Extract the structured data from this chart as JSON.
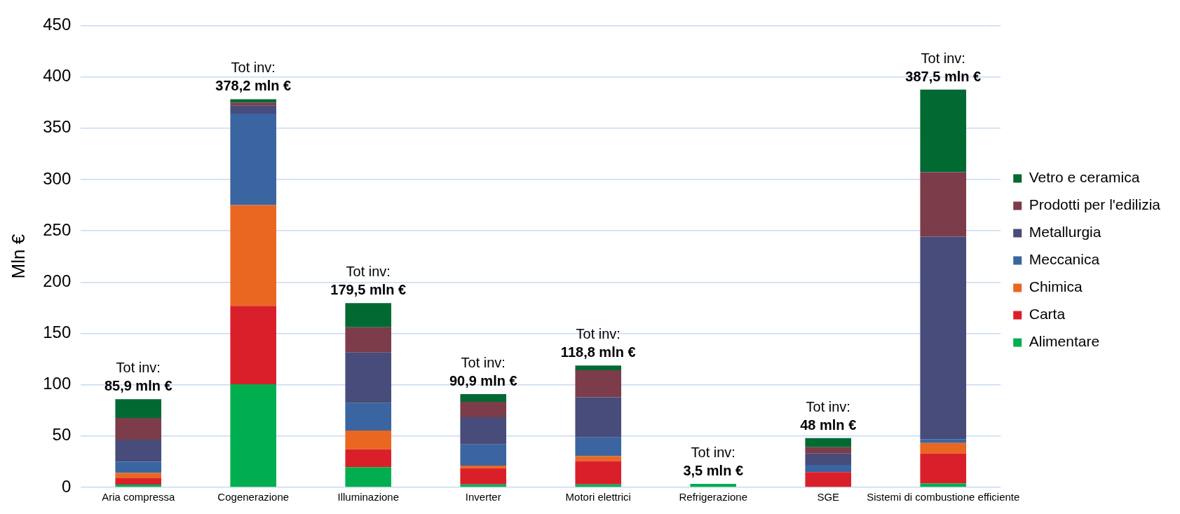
{
  "chart_data": {
    "type": "bar",
    "stacked": true,
    "ylabel": "Mln €",
    "ylim": [
      0,
      450
    ],
    "yticks": [
      0,
      50,
      100,
      150,
      200,
      250,
      300,
      350,
      400,
      450
    ],
    "grid": "y",
    "legend": "right",
    "categories": [
      "Aria compressa",
      "Cogenerazione",
      "Illuminazione",
      "Inverter",
      "Motori elettrici",
      "Refrigerazione",
      "SGE",
      "Sistemi di combustione efficiente"
    ],
    "series": [
      {
        "name": "Alimentare",
        "color": "#00ae4f",
        "values": [
          2.7,
          100.4,
          19.7,
          2.9,
          2.9,
          3.5,
          0,
          3.8
        ]
      },
      {
        "name": "Carta",
        "color": "#d9202a",
        "values": [
          6.2,
          76.4,
          17.3,
          15.8,
          22.7,
          0,
          14.8,
          29.1
        ]
      },
      {
        "name": "Chimica",
        "color": "#ea6721",
        "values": [
          5.1,
          98.2,
          18.3,
          2.4,
          4.8,
          0,
          0,
          10.3
        ]
      },
      {
        "name": "Meccanica",
        "color": "#3a65a0",
        "values": [
          11.1,
          89.1,
          26.8,
          20.8,
          18.2,
          0,
          7.1,
          3.8
        ]
      },
      {
        "name": "Metallurgia",
        "color": "#474c7a",
        "values": [
          21.3,
          8.1,
          49.3,
          26.5,
          39.2,
          0,
          11.0,
          197.3
        ]
      },
      {
        "name": "Prodotti per l'edilizia",
        "color": "#7d3c4a",
        "values": [
          21.3,
          2.7,
          24.6,
          14.9,
          26.3,
          0,
          6.2,
          62.9
        ]
      },
      {
        "name": "Vetro e ceramica",
        "color": "#006a32",
        "values": [
          18.2,
          3.3,
          23.5,
          7.6,
          4.7,
          0,
          8.9,
          80.3
        ]
      }
    ],
    "totals": [
      "Tot inv:\n85,9 mln €",
      "Tot inv:\n378,2 mln €",
      "Tot inv:\n179,5 mln €",
      "Tot inv:\n90,9 mln €",
      "Tot inv:\n118,8 mln €",
      "Tot inv:\n3,5 mln €",
      "Tot inv:\n48 mln €",
      "Tot inv:\n387,5 mln €"
    ]
  }
}
